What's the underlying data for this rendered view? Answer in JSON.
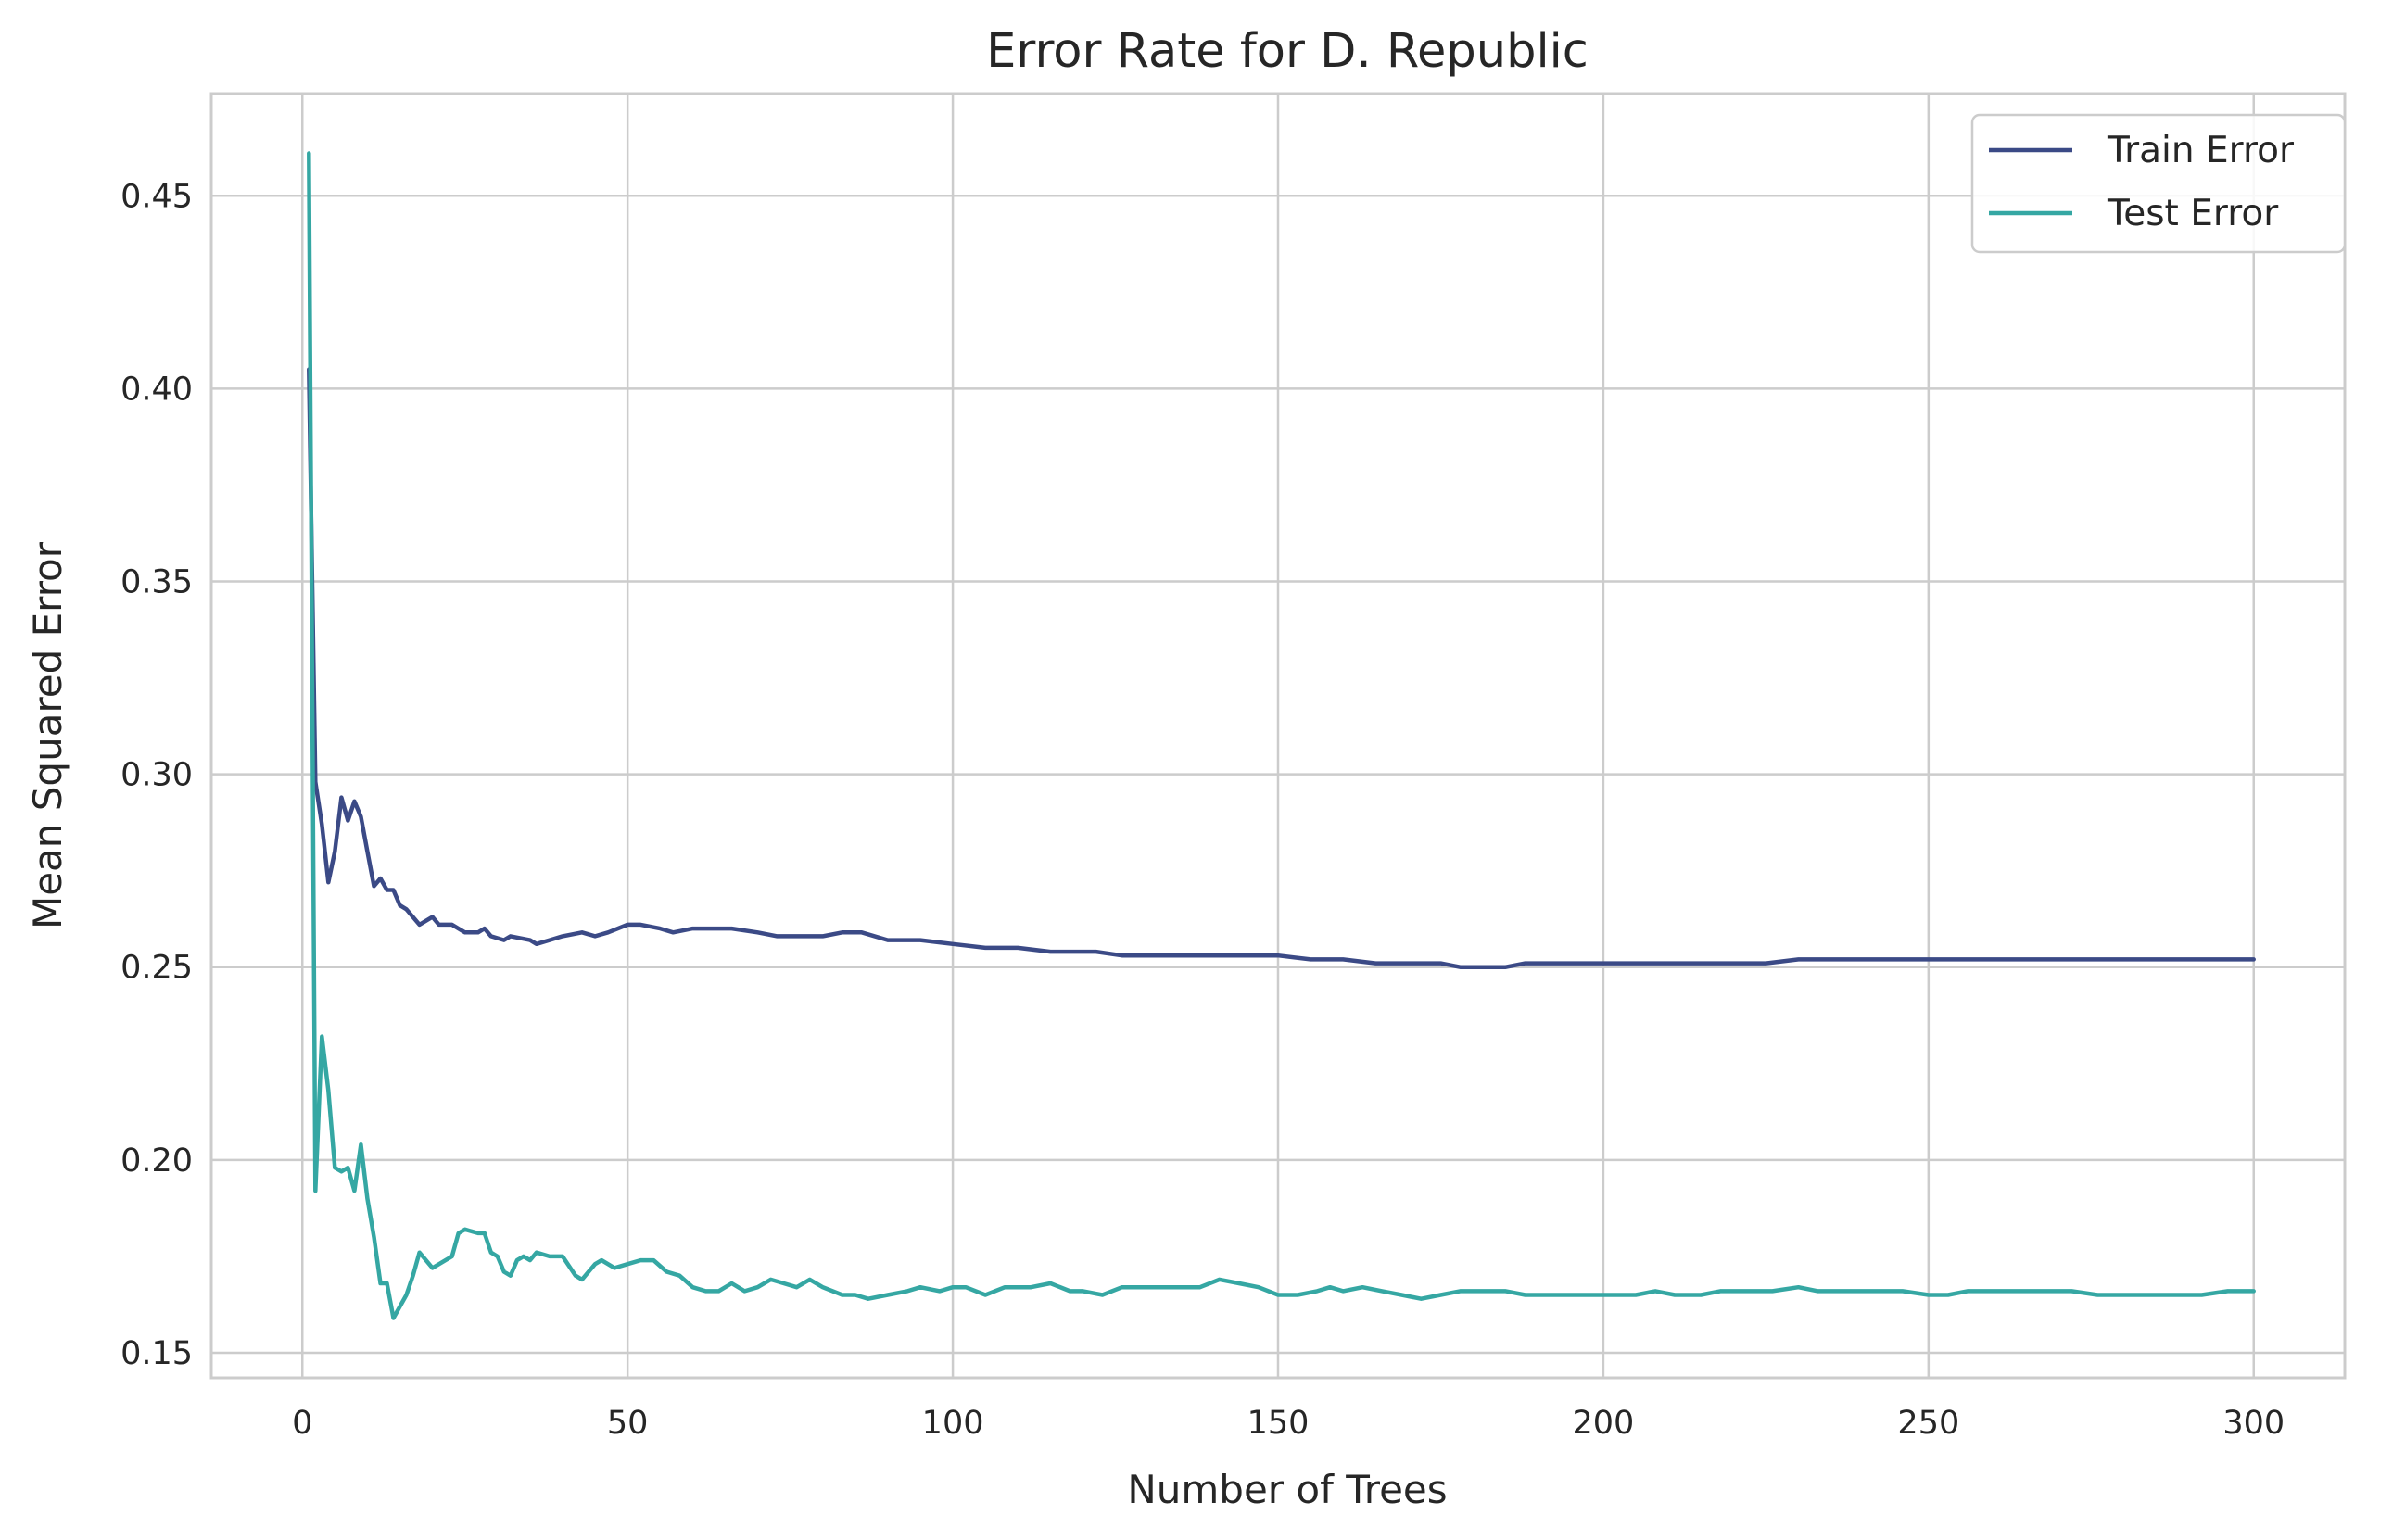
{
  "chart_data": {
    "type": "line",
    "title": "Error Rate for D. Republic",
    "xlabel": "Number of Trees",
    "ylabel": "Mean Squared Error",
    "xlim": [
      -14,
      314
    ],
    "ylim": [
      0.1435,
      0.4765
    ],
    "x_ticks": [
      0,
      50,
      100,
      150,
      200,
      250,
      300
    ],
    "x_tick_labels": [
      "0",
      "50",
      "100",
      "150",
      "200",
      "250",
      "300"
    ],
    "y_ticks": [
      0.15,
      0.2,
      0.25,
      0.3,
      0.35,
      0.4,
      0.45
    ],
    "y_tick_labels": [
      "0.15",
      "0.20",
      "0.25",
      "0.30",
      "0.35",
      "0.40",
      "0.45"
    ],
    "grid": true,
    "legend_position": "top-right",
    "colors": {
      "train": "#3b4a86",
      "test": "#35a7a3",
      "grid": "#cccccc",
      "frame": "#cccccc"
    },
    "series": [
      {
        "name": "Train Error",
        "color": "#3b4a86",
        "points": [
          [
            1,
            0.405
          ],
          [
            2,
            0.298
          ],
          [
            3,
            0.287
          ],
          [
            4,
            0.272
          ],
          [
            5,
            0.28
          ],
          [
            6,
            0.294
          ],
          [
            7,
            0.288
          ],
          [
            8,
            0.293
          ],
          [
            9,
            0.289
          ],
          [
            10,
            0.28
          ],
          [
            11,
            0.271
          ],
          [
            12,
            0.273
          ],
          [
            13,
            0.27
          ],
          [
            14,
            0.27
          ],
          [
            15,
            0.266
          ],
          [
            16,
            0.265
          ],
          [
            18,
            0.261
          ],
          [
            20,
            0.263
          ],
          [
            21,
            0.261
          ],
          [
            23,
            0.261
          ],
          [
            25,
            0.259
          ],
          [
            27,
            0.259
          ],
          [
            28,
            0.26
          ],
          [
            29,
            0.258
          ],
          [
            31,
            0.257
          ],
          [
            32,
            0.258
          ],
          [
            35,
            0.257
          ],
          [
            36,
            0.256
          ],
          [
            38,
            0.257
          ],
          [
            40,
            0.258
          ],
          [
            43,
            0.259
          ],
          [
            45,
            0.258
          ],
          [
            47,
            0.259
          ],
          [
            50,
            0.261
          ],
          [
            52,
            0.261
          ],
          [
            55,
            0.26
          ],
          [
            57,
            0.259
          ],
          [
            60,
            0.26
          ],
          [
            63,
            0.26
          ],
          [
            66,
            0.26
          ],
          [
            70,
            0.259
          ],
          [
            73,
            0.258
          ],
          [
            76,
            0.258
          ],
          [
            80,
            0.258
          ],
          [
            83,
            0.259
          ],
          [
            86,
            0.259
          ],
          [
            90,
            0.257
          ],
          [
            95,
            0.257
          ],
          [
            100,
            0.256
          ],
          [
            105,
            0.255
          ],
          [
            110,
            0.255
          ],
          [
            115,
            0.254
          ],
          [
            118,
            0.254
          ],
          [
            122,
            0.254
          ],
          [
            126,
            0.253
          ],
          [
            130,
            0.253
          ],
          [
            135,
            0.253
          ],
          [
            140,
            0.253
          ],
          [
            145,
            0.253
          ],
          [
            150,
            0.253
          ],
          [
            155,
            0.252
          ],
          [
            160,
            0.252
          ],
          [
            165,
            0.251
          ],
          [
            170,
            0.251
          ],
          [
            175,
            0.251
          ],
          [
            178,
            0.25
          ],
          [
            181,
            0.25
          ],
          [
            185,
            0.25
          ],
          [
            188,
            0.251
          ],
          [
            192,
            0.251
          ],
          [
            196,
            0.251
          ],
          [
            200,
            0.251
          ],
          [
            205,
            0.251
          ],
          [
            210,
            0.251
          ],
          [
            215,
            0.251
          ],
          [
            220,
            0.251
          ],
          [
            225,
            0.251
          ],
          [
            230,
            0.252
          ],
          [
            235,
            0.252
          ],
          [
            240,
            0.252
          ],
          [
            245,
            0.252
          ],
          [
            250,
            0.252
          ],
          [
            255,
            0.252
          ],
          [
            260,
            0.252
          ],
          [
            265,
            0.252
          ],
          [
            270,
            0.252
          ],
          [
            275,
            0.252
          ],
          [
            280,
            0.252
          ],
          [
            285,
            0.252
          ],
          [
            290,
            0.252
          ],
          [
            295,
            0.252
          ],
          [
            300,
            0.252
          ]
        ]
      },
      {
        "name": "Test Error",
        "color": "#35a7a3",
        "points": [
          [
            1,
            0.461
          ],
          [
            2,
            0.192
          ],
          [
            3,
            0.232
          ],
          [
            4,
            0.218
          ],
          [
            5,
            0.198
          ],
          [
            6,
            0.197
          ],
          [
            7,
            0.198
          ],
          [
            8,
            0.192
          ],
          [
            9,
            0.204
          ],
          [
            10,
            0.19
          ],
          [
            11,
            0.18
          ],
          [
            12,
            0.168
          ],
          [
            13,
            0.168
          ],
          [
            14,
            0.159
          ],
          [
            15,
            0.162
          ],
          [
            16,
            0.165
          ],
          [
            17,
            0.17
          ],
          [
            18,
            0.176
          ],
          [
            19,
            0.174
          ],
          [
            20,
            0.172
          ],
          [
            22,
            0.174
          ],
          [
            23,
            0.175
          ],
          [
            24,
            0.181
          ],
          [
            25,
            0.182
          ],
          [
            27,
            0.181
          ],
          [
            28,
            0.181
          ],
          [
            29,
            0.176
          ],
          [
            30,
            0.175
          ],
          [
            31,
            0.171
          ],
          [
            32,
            0.17
          ],
          [
            33,
            0.174
          ],
          [
            34,
            0.175
          ],
          [
            35,
            0.174
          ],
          [
            36,
            0.176
          ],
          [
            38,
            0.175
          ],
          [
            40,
            0.175
          ],
          [
            42,
            0.17
          ],
          [
            43,
            0.169
          ],
          [
            45,
            0.173
          ],
          [
            46,
            0.174
          ],
          [
            48,
            0.172
          ],
          [
            50,
            0.173
          ],
          [
            52,
            0.174
          ],
          [
            54,
            0.174
          ],
          [
            56,
            0.171
          ],
          [
            58,
            0.17
          ],
          [
            60,
            0.167
          ],
          [
            62,
            0.166
          ],
          [
            64,
            0.166
          ],
          [
            66,
            0.168
          ],
          [
            68,
            0.166
          ],
          [
            70,
            0.167
          ],
          [
            72,
            0.169
          ],
          [
            74,
            0.168
          ],
          [
            76,
            0.167
          ],
          [
            78,
            0.169
          ],
          [
            80,
            0.167
          ],
          [
            83,
            0.165
          ],
          [
            85,
            0.165
          ],
          [
            87,
            0.164
          ],
          [
            90,
            0.165
          ],
          [
            93,
            0.166
          ],
          [
            95,
            0.167
          ],
          [
            98,
            0.166
          ],
          [
            100,
            0.167
          ],
          [
            102,
            0.167
          ],
          [
            105,
            0.165
          ],
          [
            108,
            0.167
          ],
          [
            110,
            0.167
          ],
          [
            112,
            0.167
          ],
          [
            115,
            0.168
          ],
          [
            118,
            0.166
          ],
          [
            120,
            0.166
          ],
          [
            123,
            0.165
          ],
          [
            126,
            0.167
          ],
          [
            130,
            0.167
          ],
          [
            135,
            0.167
          ],
          [
            138,
            0.167
          ],
          [
            141,
            0.169
          ],
          [
            144,
            0.168
          ],
          [
            147,
            0.167
          ],
          [
            150,
            0.165
          ],
          [
            153,
            0.165
          ],
          [
            156,
            0.166
          ],
          [
            158,
            0.167
          ],
          [
            160,
            0.166
          ],
          [
            163,
            0.167
          ],
          [
            166,
            0.166
          ],
          [
            169,
            0.165
          ],
          [
            172,
            0.164
          ],
          [
            175,
            0.165
          ],
          [
            178,
            0.166
          ],
          [
            182,
            0.166
          ],
          [
            185,
            0.166
          ],
          [
            188,
            0.165
          ],
          [
            191,
            0.165
          ],
          [
            195,
            0.165
          ],
          [
            198,
            0.165
          ],
          [
            201,
            0.165
          ],
          [
            205,
            0.165
          ],
          [
            208,
            0.166
          ],
          [
            211,
            0.165
          ],
          [
            215,
            0.165
          ],
          [
            218,
            0.166
          ],
          [
            222,
            0.166
          ],
          [
            226,
            0.166
          ],
          [
            230,
            0.167
          ],
          [
            233,
            0.166
          ],
          [
            236,
            0.166
          ],
          [
            240,
            0.166
          ],
          [
            243,
            0.166
          ],
          [
            246,
            0.166
          ],
          [
            250,
            0.165
          ],
          [
            253,
            0.165
          ],
          [
            256,
            0.166
          ],
          [
            260,
            0.166
          ],
          [
            264,
            0.166
          ],
          [
            268,
            0.166
          ],
          [
            272,
            0.166
          ],
          [
            276,
            0.165
          ],
          [
            280,
            0.165
          ],
          [
            284,
            0.165
          ],
          [
            288,
            0.165
          ],
          [
            292,
            0.165
          ],
          [
            296,
            0.166
          ],
          [
            300,
            0.166
          ]
        ]
      }
    ]
  }
}
